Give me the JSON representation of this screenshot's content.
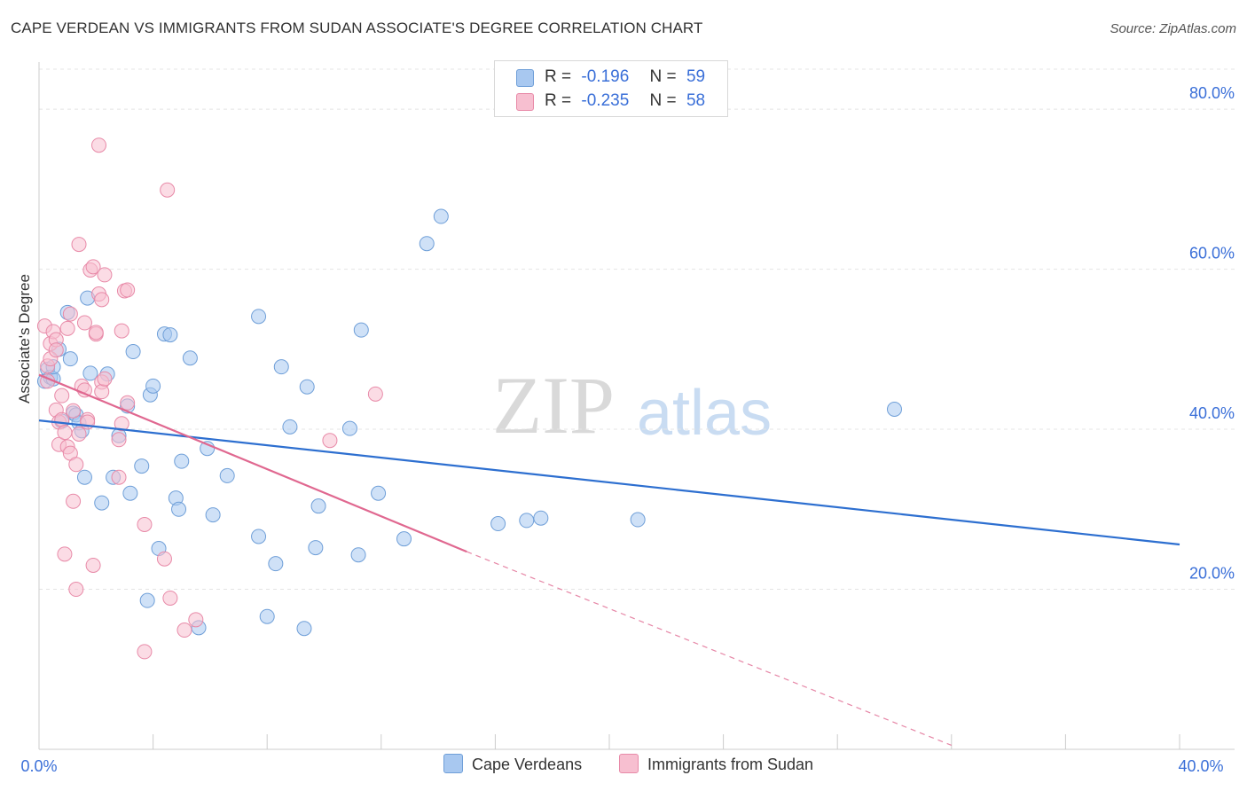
{
  "title": "CAPE VERDEAN VS IMMIGRANTS FROM SUDAN ASSOCIATE'S DEGREE CORRELATION CHART",
  "source": "Source: ZipAtlas.com",
  "watermark": {
    "zip": "ZIP",
    "atlas": "atlas"
  },
  "legend": {
    "r_label": "R =",
    "n_label": "N =",
    "rows": [
      {
        "r": "-0.196",
        "n": "59",
        "color": "#a8c8f0",
        "border": "#6f9fd8"
      },
      {
        "r": "-0.235",
        "n": "58",
        "color": "#f7bfd0",
        "border": "#e88aa8"
      }
    ]
  },
  "bottom_legend": [
    {
      "label": "Cape Verdeans",
      "color": "#a8c8f0",
      "border": "#6f9fd8"
    },
    {
      "label": "Immigrants from Sudan",
      "color": "#f7bfd0",
      "border": "#e88aa8"
    }
  ],
  "chart_data": {
    "type": "scatter",
    "title": "CAPE VERDEAN VS IMMIGRANTS FROM SUDAN ASSOCIATE'S DEGREE CORRELATION CHART",
    "xlabel": "",
    "ylabel": "Associate's Degree",
    "xlim": [
      0,
      40
    ],
    "ylim": [
      0,
      85
    ],
    "x_tick_labels": [
      "0.0%",
      "40.0%"
    ],
    "y_ticks": [
      20,
      40,
      60,
      80
    ],
    "y_tick_labels": [
      "20.0%",
      "40.0%",
      "60.0%",
      "80.0%"
    ],
    "series": [
      {
        "name": "Cape Verdeans",
        "color": "#a8c8f0",
        "stroke": "#6f9fd8",
        "line_color": "#2d6fd0",
        "trend": {
          "x1": 0,
          "y1": 41.1,
          "x2": 40,
          "y2": 25.6
        },
        "points": [
          [
            0.2,
            46.0
          ],
          [
            0.3,
            47.5
          ],
          [
            0.4,
            46.5
          ],
          [
            0.5,
            46.3
          ],
          [
            0.5,
            47.8
          ],
          [
            0.7,
            50.0
          ],
          [
            0.8,
            41.0
          ],
          [
            1.0,
            54.6
          ],
          [
            1.1,
            48.8
          ],
          [
            1.2,
            42.0
          ],
          [
            1.3,
            41.8
          ],
          [
            1.4,
            40.8
          ],
          [
            1.5,
            39.8
          ],
          [
            1.6,
            34.0
          ],
          [
            1.7,
            56.4
          ],
          [
            1.8,
            47.0
          ],
          [
            2.2,
            30.8
          ],
          [
            2.4,
            46.9
          ],
          [
            2.6,
            34.0
          ],
          [
            2.8,
            39.2
          ],
          [
            3.1,
            42.9
          ],
          [
            3.2,
            32.0
          ],
          [
            3.3,
            49.7
          ],
          [
            3.6,
            35.4
          ],
          [
            3.8,
            18.6
          ],
          [
            3.9,
            44.3
          ],
          [
            4.0,
            45.4
          ],
          [
            4.2,
            25.1
          ],
          [
            4.4,
            51.9
          ],
          [
            4.6,
            51.8
          ],
          [
            4.8,
            31.4
          ],
          [
            4.9,
            30.0
          ],
          [
            5.0,
            36.0
          ],
          [
            5.3,
            48.9
          ],
          [
            5.6,
            15.2
          ],
          [
            5.9,
            37.6
          ],
          [
            6.1,
            29.3
          ],
          [
            6.6,
            34.2
          ],
          [
            7.7,
            26.6
          ],
          [
            7.7,
            54.1
          ],
          [
            8.0,
            16.6
          ],
          [
            8.3,
            23.2
          ],
          [
            8.5,
            47.8
          ],
          [
            8.8,
            40.3
          ],
          [
            9.3,
            15.1
          ],
          [
            9.4,
            45.3
          ],
          [
            9.7,
            25.2
          ],
          [
            9.8,
            30.4
          ],
          [
            10.9,
            40.1
          ],
          [
            11.2,
            24.3
          ],
          [
            11.3,
            52.4
          ],
          [
            11.9,
            32.0
          ],
          [
            12.8,
            26.3
          ],
          [
            13.6,
            63.2
          ],
          [
            14.1,
            66.6
          ],
          [
            16.1,
            28.2
          ],
          [
            17.1,
            28.6
          ],
          [
            17.6,
            28.9
          ],
          [
            21.0,
            28.7
          ],
          [
            30.0,
            42.5
          ]
        ]
      },
      {
        "name": "Immigrants from Sudan",
        "color": "#f7bfd0",
        "stroke": "#e88aa8",
        "line_color": "#e06890",
        "trend": {
          "x1": 0,
          "y1": 46.8,
          "x2": 15.0,
          "y2": 24.7
        },
        "trend_dashed": {
          "x1": 15.0,
          "y1": 24.7,
          "x2": 32.0,
          "y2": 0.5
        },
        "points": [
          [
            0.2,
            52.9
          ],
          [
            0.3,
            47.9
          ],
          [
            0.3,
            46.0
          ],
          [
            0.4,
            50.7
          ],
          [
            0.4,
            48.8
          ],
          [
            0.5,
            52.2
          ],
          [
            0.6,
            51.2
          ],
          [
            0.6,
            49.9
          ],
          [
            0.6,
            42.4
          ],
          [
            0.7,
            40.9
          ],
          [
            0.7,
            38.1
          ],
          [
            0.8,
            44.2
          ],
          [
            0.8,
            41.2
          ],
          [
            0.9,
            24.4
          ],
          [
            0.9,
            39.6
          ],
          [
            1.0,
            37.8
          ],
          [
            1.0,
            52.6
          ],
          [
            1.1,
            54.4
          ],
          [
            1.1,
            37.0
          ],
          [
            1.2,
            31.0
          ],
          [
            1.2,
            42.3
          ],
          [
            1.3,
            20.0
          ],
          [
            1.3,
            35.6
          ],
          [
            1.4,
            39.4
          ],
          [
            1.4,
            63.1
          ],
          [
            1.5,
            45.4
          ],
          [
            1.6,
            53.3
          ],
          [
            1.6,
            44.9
          ],
          [
            1.7,
            41.2
          ],
          [
            1.7,
            40.9
          ],
          [
            1.8,
            59.9
          ],
          [
            1.9,
            60.3
          ],
          [
            1.9,
            23.0
          ],
          [
            2.0,
            51.9
          ],
          [
            2.0,
            52.1
          ],
          [
            2.1,
            75.5
          ],
          [
            2.1,
            56.9
          ],
          [
            2.2,
            56.2
          ],
          [
            2.2,
            45.9
          ],
          [
            2.2,
            44.7
          ],
          [
            2.3,
            59.3
          ],
          [
            2.3,
            46.3
          ],
          [
            2.8,
            38.7
          ],
          [
            2.8,
            34.0
          ],
          [
            2.9,
            40.7
          ],
          [
            2.9,
            52.3
          ],
          [
            3.0,
            57.3
          ],
          [
            3.1,
            57.4
          ],
          [
            3.1,
            43.3
          ],
          [
            3.7,
            12.2
          ],
          [
            3.7,
            28.1
          ],
          [
            4.4,
            23.8
          ],
          [
            4.5,
            69.9
          ],
          [
            4.6,
            18.9
          ],
          [
            5.1,
            14.9
          ],
          [
            5.5,
            16.2
          ],
          [
            10.2,
            38.6
          ],
          [
            11.8,
            44.4
          ]
        ]
      }
    ]
  }
}
